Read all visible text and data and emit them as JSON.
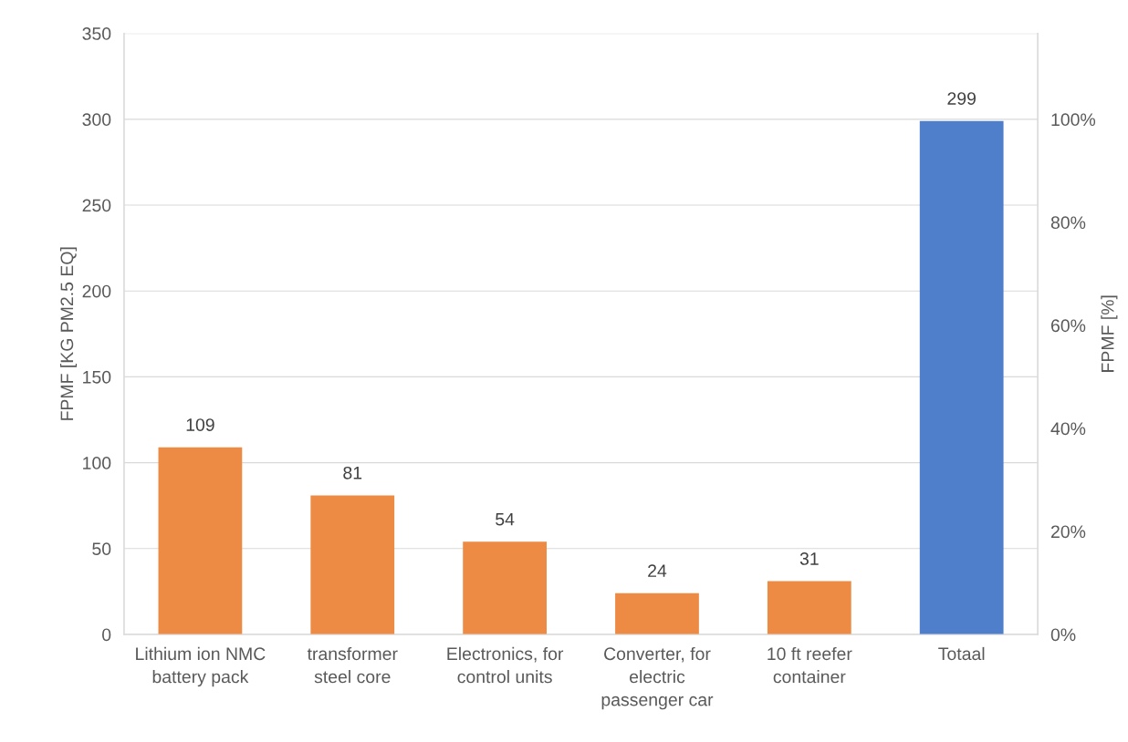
{
  "chart_data": {
    "type": "bar",
    "categories": [
      "Lithium ion NMC battery pack",
      "transformer steel core",
      "Electronics, for control units",
      "Converter, for electric passenger car",
      "10 ft reefer container",
      "Totaal"
    ],
    "values": [
      109,
      81,
      54,
      24,
      31,
      299
    ],
    "colors": [
      "#ed8b45",
      "#ed8b45",
      "#ed8b45",
      "#ed8b45",
      "#ed8b45",
      "#4f7fca"
    ],
    "ylabel": "FPMF [KG PM2.5 EQ]",
    "y2label": "FPMF [%]",
    "ylim": [
      0,
      350
    ],
    "yticks": [
      0,
      50,
      100,
      150,
      200,
      250,
      300,
      350
    ],
    "y2lim": [
      0,
      116.67
    ],
    "y2ticks": [
      {
        "value": 0,
        "label": "0%"
      },
      {
        "value": 20,
        "label": "20%"
      },
      {
        "value": 40,
        "label": "40%"
      },
      {
        "value": 60,
        "label": "60%"
      },
      {
        "value": 80,
        "label": "80%"
      },
      {
        "value": 100,
        "label": "100%"
      }
    ],
    "grid": "y",
    "data_labels": true
  }
}
